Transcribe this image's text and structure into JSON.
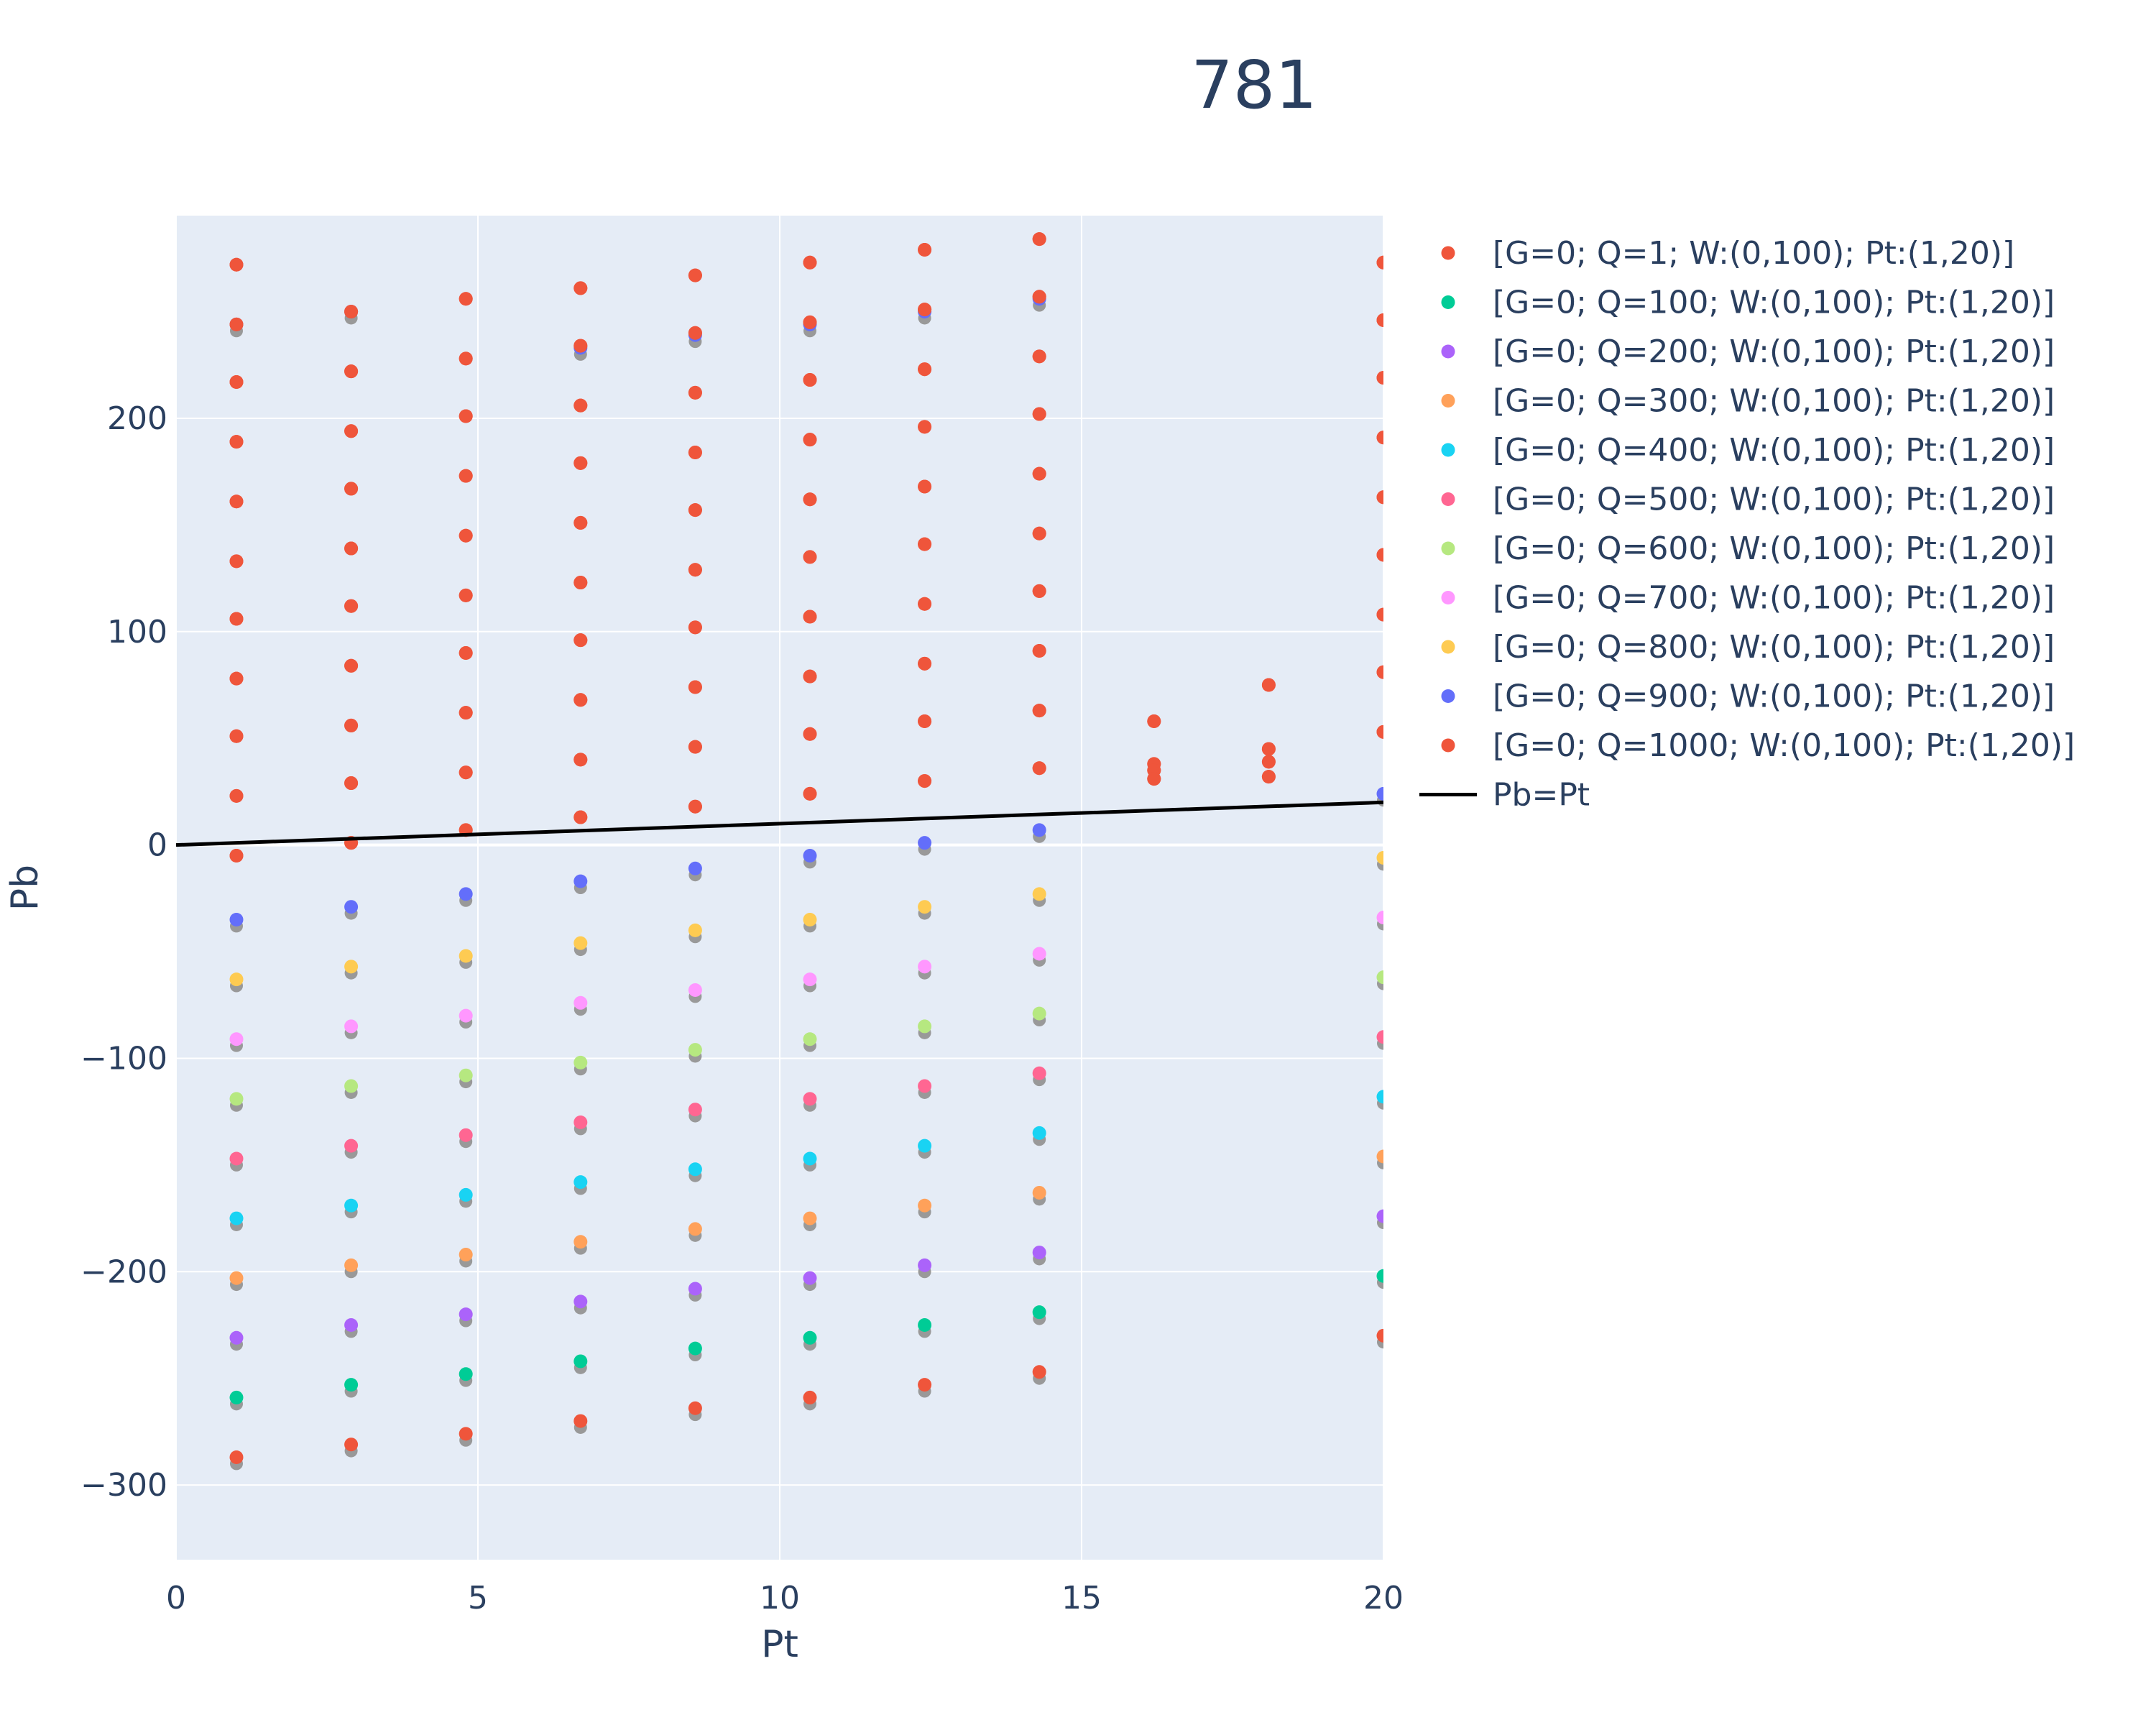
{
  "chart_data": {
    "type": "scatter",
    "title": "781",
    "xlabel": "Pt",
    "ylabel": "Pb",
    "xlim": [
      0,
      20
    ],
    "ylim": [
      -335,
      295
    ],
    "xticks": [
      0,
      5,
      10,
      15,
      20
    ],
    "yticks": [
      -300,
      -200,
      -100,
      0,
      100,
      200
    ],
    "xtick_labels": [
      "0",
      "5",
      "10",
      "15",
      "20"
    ],
    "ytick_labels": [
      "−300",
      "−200",
      "−100",
      "0",
      "100",
      "200"
    ],
    "grid": true,
    "legend_position": "right",
    "x": [
      1,
      2.9,
      4.8,
      6.7,
      8.6,
      10.5,
      12.4,
      14.3,
      16.2,
      18.1,
      20
    ],
    "series": [
      {
        "name": "[G=0; Q=1; W:(0,100); Pt:(1,20)]",
        "color": "#EF553B",
        "points": [
          [
            1,
            272
          ],
          [
            1,
            244
          ],
          [
            1,
            217
          ],
          [
            1,
            189
          ],
          [
            1,
            161
          ],
          [
            1,
            133
          ],
          [
            1,
            106
          ],
          [
            1,
            78
          ],
          [
            1,
            51
          ],
          [
            1,
            23
          ],
          [
            1,
            -5
          ],
          [
            2.9,
            250
          ],
          [
            2.9,
            222
          ],
          [
            2.9,
            194
          ],
          [
            2.9,
            167
          ],
          [
            2.9,
            139
          ],
          [
            2.9,
            112
          ],
          [
            2.9,
            84
          ],
          [
            2.9,
            56
          ],
          [
            2.9,
            29
          ],
          [
            2.9,
            1
          ],
          [
            4.8,
            256
          ],
          [
            4.8,
            228
          ],
          [
            4.8,
            201
          ],
          [
            4.8,
            173
          ],
          [
            4.8,
            145
          ],
          [
            4.8,
            117
          ],
          [
            4.8,
            90
          ],
          [
            4.8,
            62
          ],
          [
            4.8,
            34
          ],
          [
            4.8,
            7
          ],
          [
            6.7,
            261
          ],
          [
            6.7,
            234
          ],
          [
            6.7,
            206
          ],
          [
            6.7,
            179
          ],
          [
            6.7,
            151
          ],
          [
            6.7,
            123
          ],
          [
            6.7,
            96
          ],
          [
            6.7,
            68
          ],
          [
            6.7,
            40
          ],
          [
            6.7,
            13
          ],
          [
            8.6,
            267
          ],
          [
            8.6,
            240
          ],
          [
            8.6,
            212
          ],
          [
            8.6,
            184
          ],
          [
            8.6,
            157
          ],
          [
            8.6,
            129
          ],
          [
            8.6,
            102
          ],
          [
            8.6,
            74
          ],
          [
            8.6,
            46
          ],
          [
            8.6,
            18
          ],
          [
            10.5,
            273
          ],
          [
            10.5,
            245
          ],
          [
            10.5,
            218
          ],
          [
            10.5,
            190
          ],
          [
            10.5,
            162
          ],
          [
            10.5,
            135
          ],
          [
            10.5,
            107
          ],
          [
            10.5,
            79
          ],
          [
            10.5,
            52
          ],
          [
            10.5,
            24
          ],
          [
            12.4,
            279
          ],
          [
            12.4,
            251
          ],
          [
            12.4,
            223
          ],
          [
            12.4,
            196
          ],
          [
            12.4,
            168
          ],
          [
            12.4,
            141
          ],
          [
            12.4,
            113
          ],
          [
            12.4,
            85
          ],
          [
            12.4,
            58
          ],
          [
            12.4,
            30
          ],
          [
            14.3,
            284
          ],
          [
            14.3,
            257
          ],
          [
            14.3,
            229
          ],
          [
            14.3,
            202
          ],
          [
            14.3,
            174
          ],
          [
            14.3,
            146
          ],
          [
            14.3,
            119
          ],
          [
            14.3,
            91
          ],
          [
            14.3,
            63
          ],
          [
            14.3,
            36
          ],
          [
            16.2,
            58
          ],
          [
            16.2,
            38
          ],
          [
            16.2,
            35
          ],
          [
            16.2,
            31
          ],
          [
            18.1,
            75
          ],
          [
            18.1,
            45
          ],
          [
            18.1,
            39
          ],
          [
            18.1,
            32
          ],
          [
            20,
            273
          ],
          [
            20,
            246
          ],
          [
            20,
            219
          ],
          [
            20,
            191
          ],
          [
            20,
            163
          ],
          [
            20,
            136
          ],
          [
            20,
            108
          ],
          [
            20,
            81
          ],
          [
            20,
            53
          ]
        ]
      },
      {
        "name": "[G=0; Q=100; W:(0,100); Pt:(1,20)]",
        "color": "#00CC96",
        "points": [
          [
            1,
            -259
          ],
          [
            2.9,
            -253
          ],
          [
            4.8,
            -248
          ],
          [
            6.7,
            -242
          ],
          [
            8.6,
            -236
          ],
          [
            10.5,
            -231
          ],
          [
            12.4,
            -225
          ],
          [
            14.3,
            -219
          ],
          [
            20,
            -202
          ]
        ]
      },
      {
        "name": "[G=0; Q=200; W:(0,100); Pt:(1,20)]",
        "color": "#AB63FA",
        "points": [
          [
            1,
            -231
          ],
          [
            2.9,
            -225
          ],
          [
            4.8,
            -220
          ],
          [
            6.7,
            -214
          ],
          [
            8.6,
            -208
          ],
          [
            10.5,
            -203
          ],
          [
            12.4,
            -197
          ],
          [
            14.3,
            -191
          ],
          [
            20,
            -174
          ]
        ]
      },
      {
        "name": "[G=0; Q=300; W:(0,100); Pt:(1,20)]",
        "color": "#FFA15A",
        "points": [
          [
            1,
            -203
          ],
          [
            2.9,
            -197
          ],
          [
            4.8,
            -192
          ],
          [
            6.7,
            -186
          ],
          [
            8.6,
            -180
          ],
          [
            10.5,
            -175
          ],
          [
            12.4,
            -169
          ],
          [
            14.3,
            -163
          ],
          [
            20,
            -146
          ]
        ]
      },
      {
        "name": "[G=0; Q=400; W:(0,100); Pt:(1,20)]",
        "color": "#19D3F3",
        "points": [
          [
            1,
            -175
          ],
          [
            2.9,
            -169
          ],
          [
            4.8,
            -164
          ],
          [
            6.7,
            -158
          ],
          [
            8.6,
            -152
          ],
          [
            10.5,
            -147
          ],
          [
            12.4,
            -141
          ],
          [
            14.3,
            -135
          ],
          [
            20,
            -118
          ]
        ]
      },
      {
        "name": "[G=0; Q=500; W:(0,100); Pt:(1,20)]",
        "color": "#FF6692",
        "points": [
          [
            1,
            -147
          ],
          [
            2.9,
            -141
          ],
          [
            4.8,
            -136
          ],
          [
            6.7,
            -130
          ],
          [
            8.6,
            -124
          ],
          [
            10.5,
            -119
          ],
          [
            12.4,
            -113
          ],
          [
            14.3,
            -107
          ],
          [
            20,
            -90
          ]
        ]
      },
      {
        "name": "[G=0; Q=600; W:(0,100); Pt:(1,20)]",
        "color": "#B6E880",
        "points": [
          [
            1,
            -119
          ],
          [
            2.9,
            -113
          ],
          [
            4.8,
            -108
          ],
          [
            6.7,
            -102
          ],
          [
            8.6,
            -96
          ],
          [
            10.5,
            -91
          ],
          [
            12.4,
            -85
          ],
          [
            14.3,
            -79
          ],
          [
            20,
            -62
          ]
        ]
      },
      {
        "name": "[G=0; Q=700; W:(0,100); Pt:(1,20)]",
        "color": "#FF97FF",
        "points": [
          [
            1,
            -91
          ],
          [
            2.9,
            -85
          ],
          [
            4.8,
            -80
          ],
          [
            6.7,
            -74
          ],
          [
            8.6,
            -68
          ],
          [
            10.5,
            -63
          ],
          [
            12.4,
            -57
          ],
          [
            14.3,
            -51
          ],
          [
            20,
            -34
          ]
        ]
      },
      {
        "name": "[G=0; Q=800; W:(0,100); Pt:(1,20)]",
        "color": "#FECB52",
        "points": [
          [
            1,
            -63
          ],
          [
            2.9,
            -57
          ],
          [
            4.8,
            -52
          ],
          [
            6.7,
            -46
          ],
          [
            8.6,
            -40
          ],
          [
            10.5,
            -35
          ],
          [
            12.4,
            -29
          ],
          [
            14.3,
            -23
          ],
          [
            20,
            -6
          ]
        ]
      },
      {
        "name": "[G=0; Q=900; W:(0,100); Pt:(1,20)]",
        "color": "#636EFA",
        "points": [
          [
            1,
            -35
          ],
          [
            2.9,
            -29
          ],
          [
            4.8,
            -23
          ],
          [
            6.7,
            -17
          ],
          [
            8.6,
            -11
          ],
          [
            10.5,
            -5
          ],
          [
            12.4,
            1
          ],
          [
            14.3,
            7
          ],
          [
            20,
            24
          ],
          [
            1,
            244
          ],
          [
            2.9,
            250
          ],
          [
            6.7,
            233
          ],
          [
            8.6,
            239
          ],
          [
            10.5,
            244
          ],
          [
            12.4,
            250
          ],
          [
            14.3,
            256
          ]
        ]
      },
      {
        "name": "[G=0; Q=1000; W:(0,100); Pt:(1,20)]",
        "color": "#EF553B",
        "points": [
          [
            1,
            -287
          ],
          [
            2.9,
            -281
          ],
          [
            4.8,
            -276
          ],
          [
            6.7,
            -270
          ],
          [
            8.6,
            -264
          ],
          [
            10.5,
            -259
          ],
          [
            12.4,
            -253
          ],
          [
            14.3,
            -247
          ],
          [
            20,
            -230
          ]
        ]
      }
    ],
    "line_series": {
      "name": "Pb=Pt",
      "color": "#000000",
      "points": [
        [
          0,
          0
        ],
        [
          20,
          20
        ]
      ]
    }
  }
}
